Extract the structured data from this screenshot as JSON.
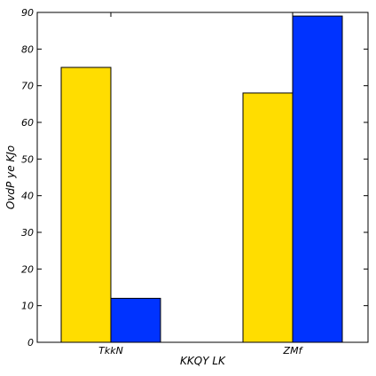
{
  "chart_data": {
    "type": "bar",
    "title": "",
    "xlabel": "KKQY LK",
    "ylabel": "OvdP  ye KJo",
    "categories": [
      "TkkN",
      "ZMf"
    ],
    "series": [
      {
        "values": [
          75,
          68
        ],
        "color": "#FFDD00"
      },
      {
        "values": [
          12,
          89
        ],
        "color": "#0033FF"
      }
    ],
    "ylim": [
      0,
      90
    ],
    "yticks": [
      0,
      10,
      20,
      30,
      40,
      50,
      60,
      70,
      80,
      90
    ],
    "grid": false,
    "legend": "none"
  }
}
